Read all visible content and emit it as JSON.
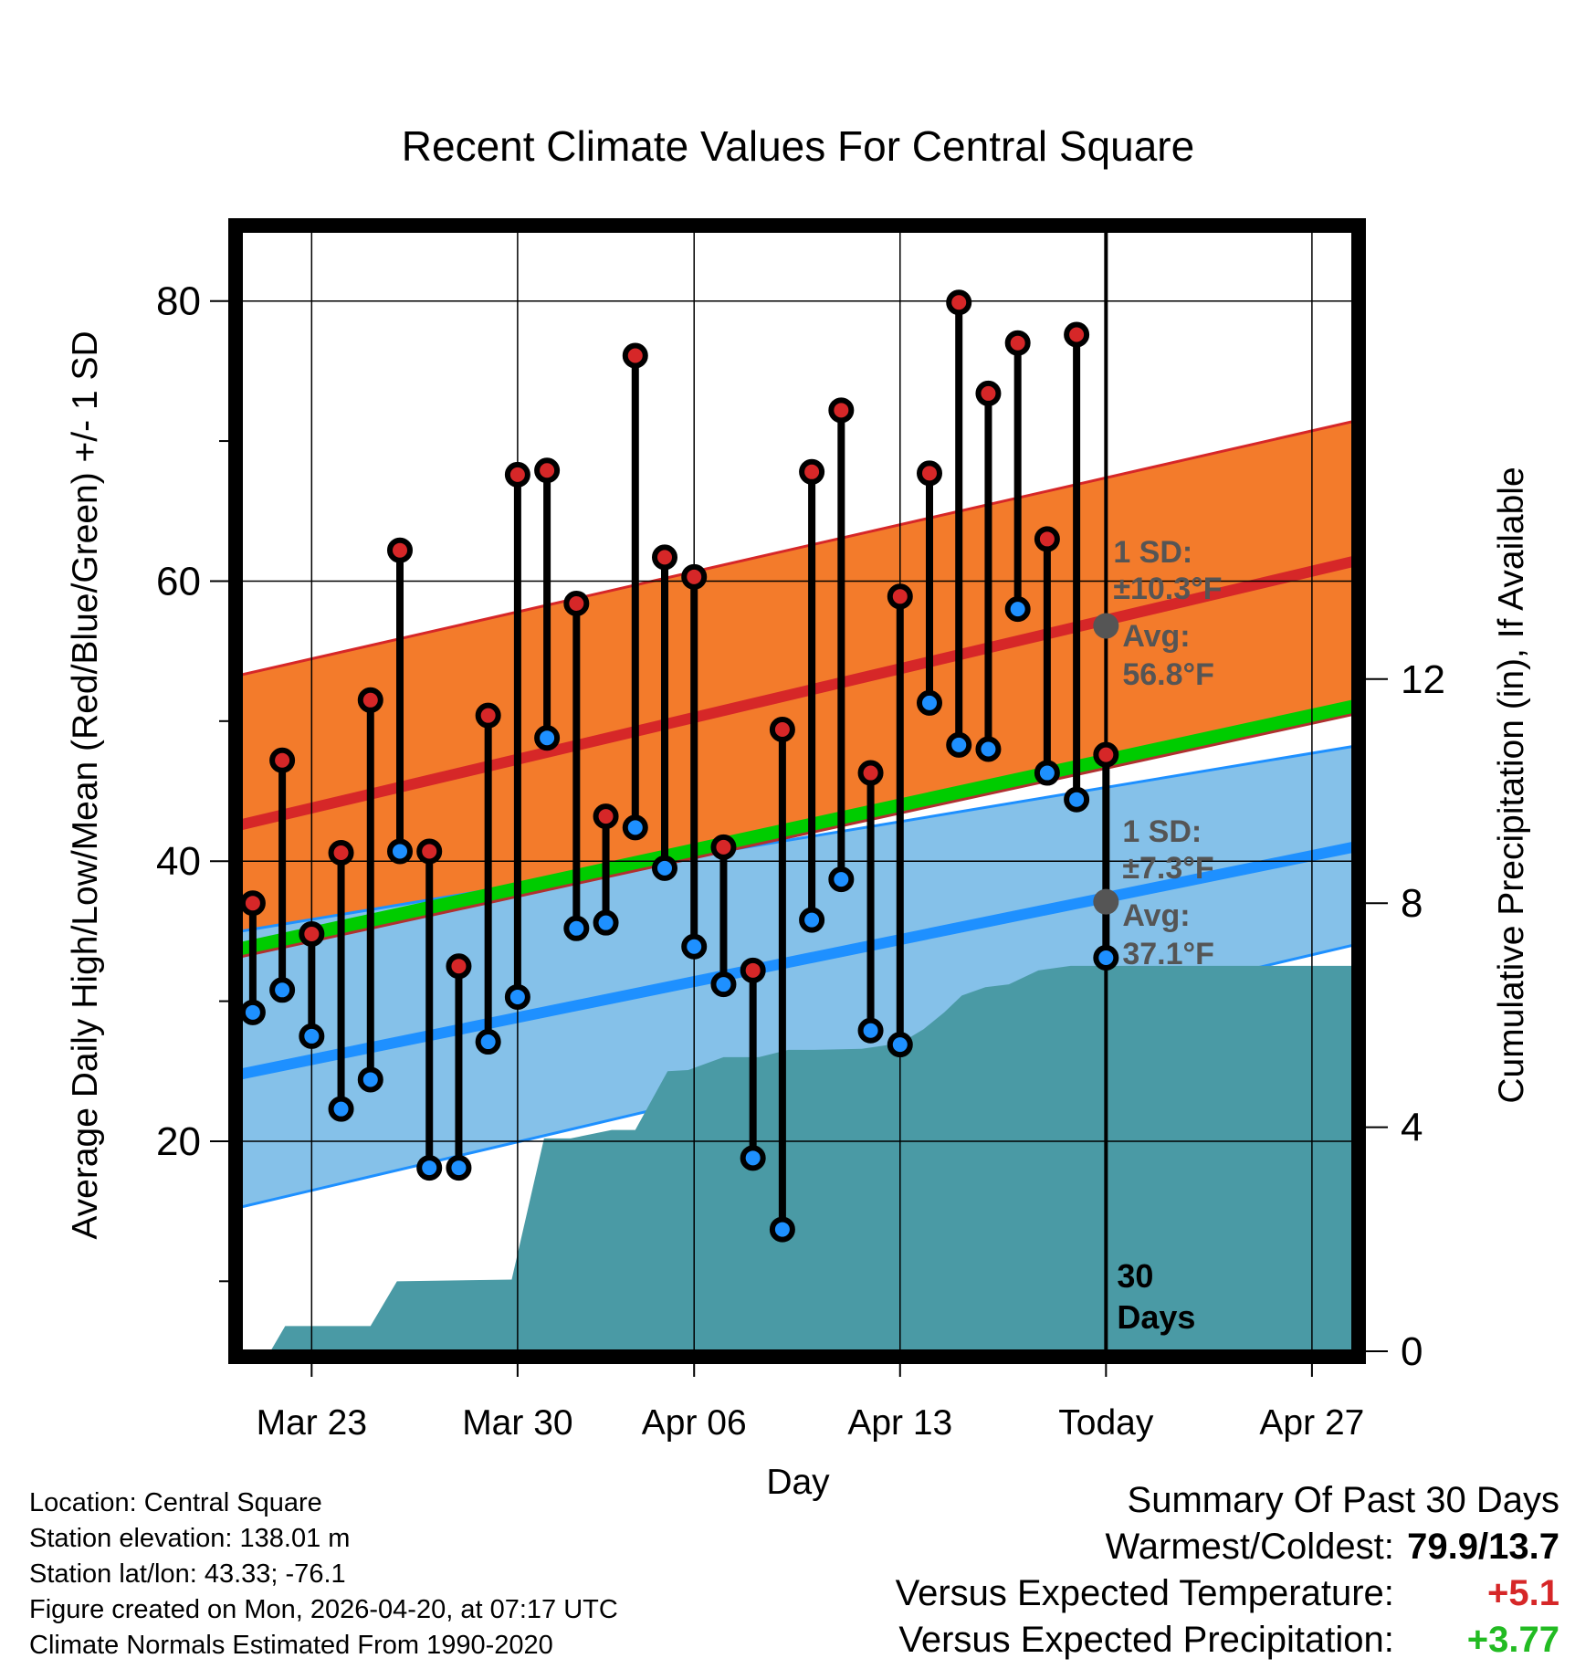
{
  "chart_data": {
    "type": "line",
    "title": "Recent Climate Values For Central Square",
    "xlabel": "Day",
    "ylabel": "Average Daily High/Low/Mean (Red/Blue/Green) +/- 1 SD",
    "y2label": "Cumulative Precipitation (in), If Available",
    "ylim": [
      5,
      85
    ],
    "y2lim": [
      0,
      20
    ],
    "xlim": [
      -29.4,
      8.4
    ],
    "yticks": [
      "20",
      "40",
      "60",
      "80"
    ],
    "y2ticks": [
      "0",
      "4",
      "8",
      "12"
    ],
    "x_ticks": [
      {
        "day": -27,
        "label": "Mar 23"
      },
      {
        "day": -20,
        "label": "Mar 30"
      },
      {
        "day": -14,
        "label": "Apr 06"
      },
      {
        "day": -7,
        "label": "Apr 13"
      },
      {
        "day": 0,
        "label": "Today"
      },
      {
        "day": 7,
        "label": "Apr 27"
      }
    ],
    "today_label": "30 Days",
    "normals": {
      "x_range": [
        -29.4,
        8.4
      ],
      "high_mean": [
        42.6,
        61.4
      ],
      "high_upper": [
        53.3,
        71.4
      ],
      "low_mean": [
        24.8,
        41.0
      ],
      "low_lower": [
        15.3,
        34.0
      ],
      "low_upper": [
        35.0,
        48.2
      ],
      "avg_mean": [
        33.7,
        51.0
      ]
    },
    "highs": [
      37.0,
      47.2,
      34.8,
      40.6,
      51.5,
      62.2,
      40.7,
      32.5,
      50.4,
      67.6,
      67.9,
      58.4,
      43.2,
      76.1,
      61.7,
      60.3,
      41.0,
      32.2,
      49.4,
      67.8,
      72.2,
      46.3,
      58.9,
      67.7,
      79.9,
      73.4,
      77.0,
      63.0,
      77.6,
      47.6
    ],
    "lows": [
      29.2,
      30.8,
      27.5,
      22.3,
      24.4,
      40.7,
      18.1,
      18.1,
      27.1,
      30.3,
      48.8,
      35.2,
      35.6,
      42.4,
      39.5,
      33.9,
      31.2,
      18.8,
      13.7,
      35.8,
      38.7,
      27.9,
      26.9,
      51.3,
      48.3,
      48.0,
      58.0,
      46.3,
      44.4,
      33.1
    ],
    "precip_cumulative": [
      {
        "x": -29.4,
        "y": 0.0
      },
      {
        "x": -28.4,
        "y": 0.0
      },
      {
        "x": -27.9,
        "y": 0.45
      },
      {
        "x": -25.0,
        "y": 0.45
      },
      {
        "x": -24.1,
        "y": 1.25
      },
      {
        "x": -20.2,
        "y": 1.28
      },
      {
        "x": -19.1,
        "y": 3.8
      },
      {
        "x": -18.2,
        "y": 3.8
      },
      {
        "x": -16.8,
        "y": 3.95
      },
      {
        "x": -16.0,
        "y": 3.95
      },
      {
        "x": -14.9,
        "y": 5.0
      },
      {
        "x": -14.2,
        "y": 5.02
      },
      {
        "x": -13.0,
        "y": 5.25
      },
      {
        "x": -11.8,
        "y": 5.25
      },
      {
        "x": -10.8,
        "y": 5.38
      },
      {
        "x": -9.9,
        "y": 5.38
      },
      {
        "x": -8.3,
        "y": 5.4
      },
      {
        "x": -7.0,
        "y": 5.5
      },
      {
        "x": -6.2,
        "y": 5.75
      },
      {
        "x": -5.5,
        "y": 6.05
      },
      {
        "x": -4.9,
        "y": 6.35
      },
      {
        "x": -4.1,
        "y": 6.5
      },
      {
        "x": -3.3,
        "y": 6.55
      },
      {
        "x": -2.3,
        "y": 6.8
      },
      {
        "x": -1.2,
        "y": 6.88
      },
      {
        "x": 0.0,
        "y": 6.88
      },
      {
        "x": 8.4,
        "y": 6.88
      }
    ],
    "annotations": {
      "high_sd_label": "1 SD:",
      "high_sd_value": "±10.3°F",
      "high_avg_label": "Avg:",
      "high_avg_value": "56.8°F",
      "low_sd_label": "1 SD:",
      "low_sd_value": "±7.3°F",
      "low_avg_label": "Avg:",
      "low_avg_value": "37.1°F",
      "high_avg_point": 56.8,
      "low_avg_point": 37.1
    },
    "colors": {
      "high_band": "#f37b2b",
      "high_line": "#d62728",
      "low_band": "#85c1e9",
      "low_line": "#1e90ff",
      "mean_line": "#00cc00",
      "precip": "#4a9aa5",
      "high_dot": "#d62728",
      "low_dot": "#1e90ff",
      "annotation": "#555555"
    }
  },
  "footer": {
    "location": "Location: Central Square",
    "elevation": "Station elevation: 138.01 m",
    "latlon": "Station lat/lon: 43.33; -76.1",
    "created": "Figure created on Mon, 2026-04-20, at 07:17 UTC",
    "normals": "Climate Normals Estimated From 1990-2020"
  },
  "summary": {
    "title": "Summary Of Past 30 Days",
    "warm_cold_label": "Warmest/Coldest:",
    "warm_cold_value": "79.9/13.7",
    "temp_label": "Versus Expected Temperature:",
    "temp_value": "+5.1",
    "precip_label": "Versus Expected Precipitation:",
    "precip_value": "+3.77"
  }
}
